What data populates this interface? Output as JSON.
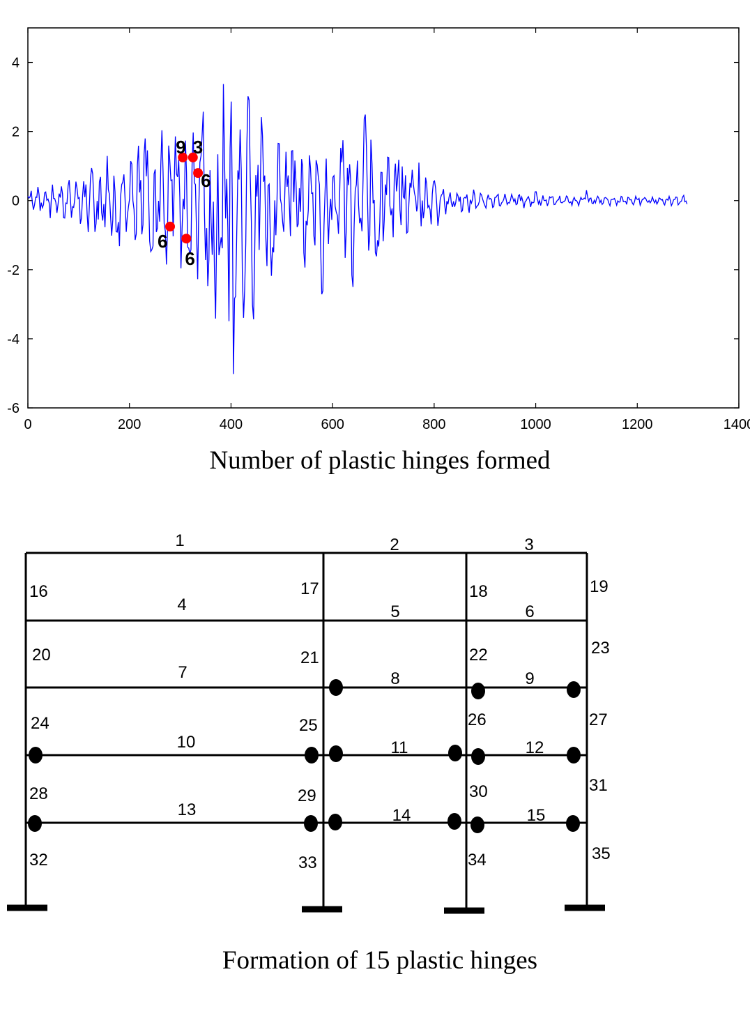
{
  "chart_data": {
    "type": "line",
    "title": "",
    "xlabel": "",
    "ylabel": "",
    "xlim": [
      0,
      1400
    ],
    "ylim": [
      -6,
      5
    ],
    "xticks": [
      "0",
      "200",
      "400",
      "600",
      "800",
      "1000",
      "1200",
      "1400"
    ],
    "yticks": [
      "4",
      "2",
      "0",
      "-2",
      "-4",
      "-6"
    ],
    "grid": false,
    "series": [
      {
        "color": "#0000ff",
        "envelope": [
          [
            0,
            0.3
          ],
          [
            40,
            0.5
          ],
          [
            100,
            0.8
          ],
          [
            150,
            1.2
          ],
          [
            200,
            1.6
          ],
          [
            240,
            2.1
          ],
          [
            280,
            2.2
          ],
          [
            320,
            2.5
          ],
          [
            350,
            2.9
          ],
          [
            380,
            3.2
          ],
          [
            400,
            3.9
          ],
          [
            420,
            3.6
          ],
          [
            450,
            3.0
          ],
          [
            480,
            2.0
          ],
          [
            520,
            1.7
          ],
          [
            560,
            1.8
          ],
          [
            600,
            1.5
          ],
          [
            650,
            1.9
          ],
          [
            680,
            2.7
          ],
          [
            710,
            1.5
          ],
          [
            760,
            1.2
          ],
          [
            800,
            0.8
          ],
          [
            830,
            0.4
          ],
          [
            900,
            0.25
          ],
          [
            1000,
            0.2
          ],
          [
            1100,
            0.15
          ],
          [
            1200,
            0.15
          ],
          [
            1300,
            0.15
          ]
        ],
        "peaks": [
          [
            125,
            1.0
          ],
          [
            175,
            -1.4
          ],
          [
            230,
            2.2
          ],
          [
            245,
            -1.9
          ],
          [
            290,
            2.0
          ],
          [
            320,
            -1.8
          ],
          [
            345,
            2.9
          ],
          [
            355,
            -3.0
          ],
          [
            370,
            -3.8
          ],
          [
            402,
            3.9
          ],
          [
            405,
            -5.4
          ],
          [
            425,
            -3.5
          ],
          [
            435,
            3.4
          ],
          [
            445,
            -4.0
          ],
          [
            460,
            2.5
          ],
          [
            480,
            -2.6
          ],
          [
            520,
            1.8
          ],
          [
            545,
            -2.1
          ],
          [
            580,
            -3.2
          ],
          [
            620,
            1.9
          ],
          [
            640,
            -2.6
          ],
          [
            665,
            2.8
          ],
          [
            690,
            -1.8
          ],
          [
            730,
            1.3
          ],
          [
            760,
            0.6
          ],
          [
            800,
            0.7
          ],
          [
            1000,
            0.3
          ],
          [
            1100,
            0.3
          ]
        ]
      }
    ],
    "hinge_events": [
      {
        "x": 305,
        "y": 1.25,
        "count": "9"
      },
      {
        "x": 325,
        "y": 1.25,
        "count": "3"
      },
      {
        "x": 335,
        "y": 0.8,
        "count": "6"
      },
      {
        "x": 280,
        "y": -0.75,
        "count": "6"
      },
      {
        "x": 312,
        "y": -1.1,
        "count": "6"
      }
    ],
    "marker_color": "#ff0000"
  },
  "captions": {
    "top": "Number of plastic hinges formed",
    "bottom": "Formation of 15 plastic hinges"
  },
  "frame": {
    "beam_labels": [
      "1",
      "2",
      "3",
      "4",
      "5",
      "6",
      "7",
      "8",
      "9",
      "10",
      "11",
      "12",
      "13",
      "14",
      "15"
    ],
    "column_labels": [
      "16",
      "17",
      "18",
      "19",
      "20",
      "21",
      "22",
      "23",
      "24",
      "25",
      "26",
      "27",
      "28",
      "29",
      "30",
      "31",
      "32",
      "33",
      "34",
      "35"
    ]
  }
}
